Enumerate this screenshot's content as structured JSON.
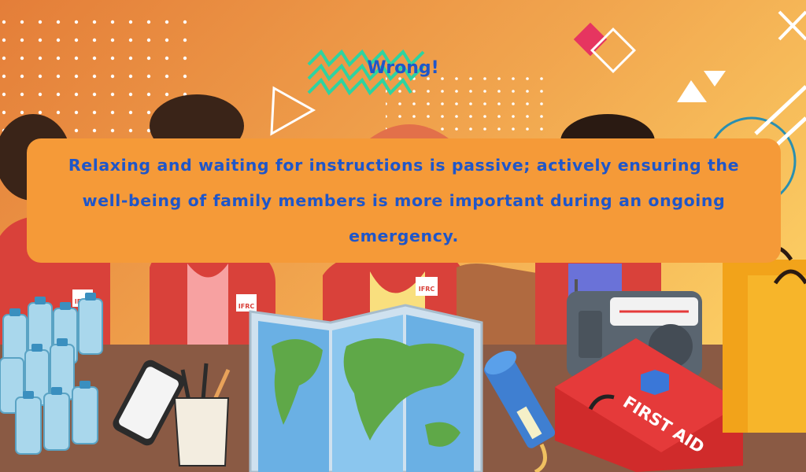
{
  "verdict": "Wrong!",
  "feedback": "Relaxing and waiting for instructions is passive; actively ensuring the well-being of family members is more important during an ongoing emergency.",
  "vest_labels": [
    "IFRC",
    "IFRC",
    "IFRC",
    "IFRC"
  ],
  "first_aid_label": "FIRST AID",
  "colors": {
    "background_gradient": [
      "#e8843a",
      "#f9c45e"
    ],
    "text_accent": "#1f56c9",
    "feedback_box": "#f59a38",
    "table": "#8a5a44",
    "red_cross": "#e53a3a"
  },
  "icons": [
    "water-bottle-icon",
    "smartphone-icon",
    "pencil-cup-icon",
    "world-map-icon",
    "flashlight-icon",
    "radio-icon",
    "first-aid-kit-icon",
    "shopping-bag-icon"
  ]
}
